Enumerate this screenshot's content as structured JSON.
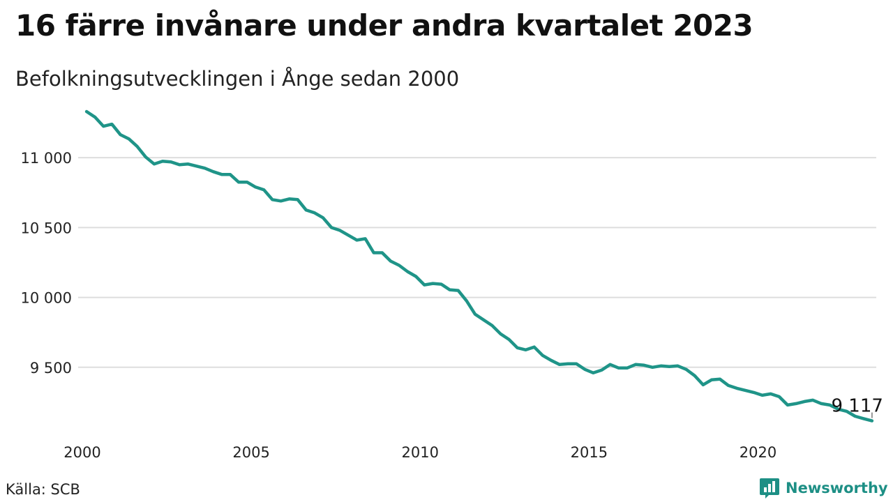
{
  "header": {
    "title": "16 färre invånare under andra kvartalet 2023",
    "subtitle": "Befolkningsutvecklingen i Ånge sedan 2000"
  },
  "footer": {
    "source": "Källa: SCB",
    "brand": "Newsworthy"
  },
  "colors": {
    "line": "#1f9488",
    "grid": "#dddddd",
    "brand": "#1d8f85"
  },
  "chart_data": {
    "type": "line",
    "title": "16 färre invånare under andra kvartalet 2023",
    "subtitle": "Befolkningsutvecklingen i Ånge sedan 2000",
    "xlabel": "",
    "ylabel": "",
    "x_ticks": [
      "2000",
      "2005",
      "2010",
      "2015",
      "2020"
    ],
    "y_ticks": [
      9500,
      10000,
      10500,
      11000
    ],
    "y_tick_labels": [
      "9 500",
      "10 000",
      "10 500",
      "11 000"
    ],
    "xlim": [
      2000,
      2023.5
    ],
    "ylim": [
      9060,
      11380
    ],
    "grid": true,
    "end_label": "9 117",
    "series": [
      {
        "name": "",
        "x": [
          2000.125,
          2000.375,
          2000.625,
          2000.875,
          2001.125,
          2001.375,
          2001.625,
          2001.875,
          2002.125,
          2002.375,
          2002.625,
          2002.875,
          2003.125,
          2003.375,
          2003.625,
          2003.875,
          2004.125,
          2004.375,
          2004.625,
          2004.875,
          2005.125,
          2005.375,
          2005.625,
          2005.875,
          2006.125,
          2006.375,
          2006.625,
          2006.875,
          2007.125,
          2007.375,
          2007.625,
          2007.875,
          2008.125,
          2008.375,
          2008.625,
          2008.875,
          2009.125,
          2009.375,
          2009.625,
          2009.875,
          2010.125,
          2010.375,
          2010.625,
          2010.875,
          2011.125,
          2011.375,
          2011.625,
          2011.875,
          2012.125,
          2012.375,
          2012.625,
          2012.875,
          2013.125,
          2013.375,
          2013.625,
          2013.875,
          2014.125,
          2014.375,
          2014.625,
          2014.875,
          2015.125,
          2015.375,
          2015.625,
          2015.875,
          2016.125,
          2016.375,
          2016.625,
          2016.875,
          2017.125,
          2017.375,
          2017.625,
          2017.875,
          2018.125,
          2018.375,
          2018.625,
          2018.875,
          2019.125,
          2019.375,
          2019.625,
          2019.875,
          2020.125,
          2020.375,
          2020.625,
          2020.875,
          2021.125,
          2021.375,
          2021.625,
          2021.875,
          2022.125,
          2022.375,
          2022.625,
          2022.875,
          2023.125,
          2023.375
        ],
        "values": [
          11330,
          11290,
          11225,
          11240,
          11165,
          11135,
          11080,
          11005,
          10955,
          10975,
          10970,
          10950,
          10955,
          10940,
          10925,
          10900,
          10880,
          10880,
          10825,
          10825,
          10790,
          10770,
          10700,
          10690,
          10705,
          10700,
          10625,
          10605,
          10570,
          10500,
          10480,
          10445,
          10410,
          10420,
          10320,
          10320,
          10260,
          10230,
          10185,
          10150,
          10090,
          10100,
          10095,
          10055,
          10050,
          9975,
          9880,
          9840,
          9800,
          9740,
          9700,
          9640,
          9625,
          9645,
          9585,
          9550,
          9520,
          9525,
          9525,
          9485,
          9460,
          9480,
          9520,
          9495,
          9495,
          9520,
          9515,
          9500,
          9510,
          9505,
          9510,
          9485,
          9440,
          9375,
          9410,
          9415,
          9370,
          9350,
          9335,
          9320,
          9300,
          9310,
          9290,
          9230,
          9240,
          9255,
          9265,
          9240,
          9230,
          9200,
          9185,
          9150,
          9133,
          9117
        ]
      }
    ]
  }
}
